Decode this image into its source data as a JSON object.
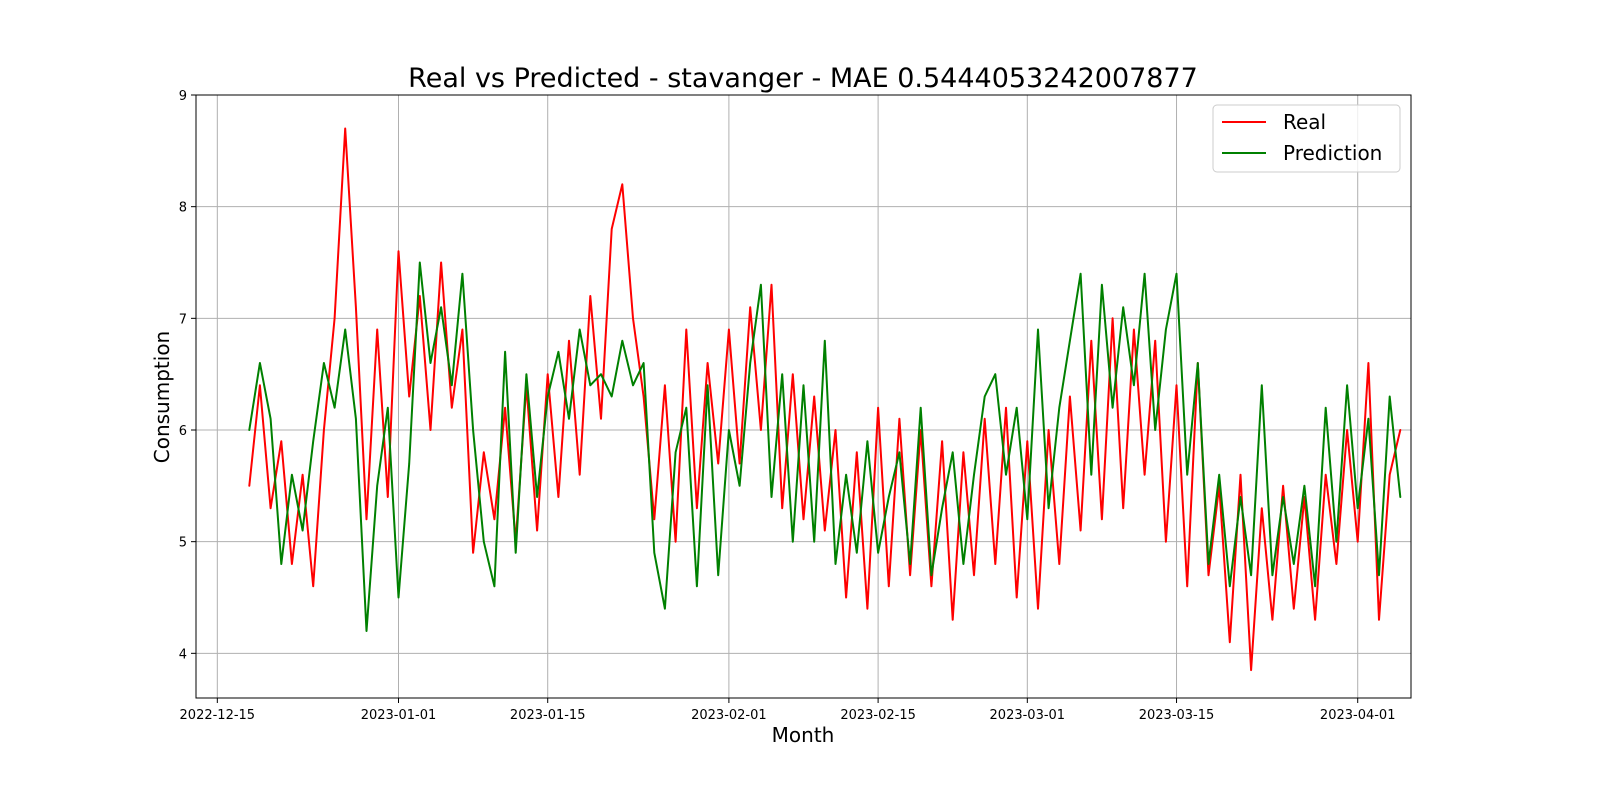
{
  "chart_data": {
    "type": "line",
    "title": "Real vs Predicted - stavanger - MAE 0.5444053242007877",
    "xlabel": "Month",
    "ylabel": "Consumption",
    "x_range": [
      "2022-12-13",
      "2023-04-06"
    ],
    "ylim": [
      3.6,
      9.0
    ],
    "x_ticks": [
      "2022-12-15",
      "2023-01-01",
      "2023-01-15",
      "2023-02-01",
      "2023-02-15",
      "2023-03-01",
      "2023-03-15",
      "2023-04-01"
    ],
    "y_ticks": [
      4,
      5,
      6,
      7,
      8,
      9
    ],
    "grid": true,
    "legend_position": "top-right",
    "series": [
      {
        "name": "Real",
        "color": "#ff0000",
        "points": [
          [
            "2022-12-18",
            5.5
          ],
          [
            "2022-12-19",
            6.4
          ],
          [
            "2022-12-20",
            5.3
          ],
          [
            "2022-12-21",
            5.9
          ],
          [
            "2022-12-22",
            4.8
          ],
          [
            "2022-12-23",
            5.6
          ],
          [
            "2022-12-24",
            4.6
          ],
          [
            "2022-12-25",
            6.0
          ],
          [
            "2022-12-26",
            7.0
          ],
          [
            "2022-12-27",
            8.7
          ],
          [
            "2022-12-28",
            7.1
          ],
          [
            "2022-12-29",
            5.2
          ],
          [
            "2022-12-30",
            6.9
          ],
          [
            "2022-12-31",
            5.4
          ],
          [
            "2023-01-01",
            7.6
          ],
          [
            "2023-01-02",
            6.3
          ],
          [
            "2023-01-03",
            7.2
          ],
          [
            "2023-01-04",
            6.0
          ],
          [
            "2023-01-05",
            7.5
          ],
          [
            "2023-01-06",
            6.2
          ],
          [
            "2023-01-07",
            6.9
          ],
          [
            "2023-01-08",
            4.9
          ],
          [
            "2023-01-09",
            5.8
          ],
          [
            "2023-01-10",
            5.2
          ],
          [
            "2023-01-11",
            6.2
          ],
          [
            "2023-01-12",
            5.0
          ],
          [
            "2023-01-13",
            6.4
          ],
          [
            "2023-01-14",
            5.1
          ],
          [
            "2023-01-15",
            6.5
          ],
          [
            "2023-01-16",
            5.4
          ],
          [
            "2023-01-17",
            6.8
          ],
          [
            "2023-01-18",
            5.6
          ],
          [
            "2023-01-19",
            7.2
          ],
          [
            "2023-01-20",
            6.1
          ],
          [
            "2023-01-21",
            7.8
          ],
          [
            "2023-01-22",
            8.2
          ],
          [
            "2023-01-23",
            7.0
          ],
          [
            "2023-01-24",
            6.3
          ],
          [
            "2023-01-25",
            5.2
          ],
          [
            "2023-01-26",
            6.4
          ],
          [
            "2023-01-27",
            5.0
          ],
          [
            "2023-01-28",
            6.9
          ],
          [
            "2023-01-29",
            5.3
          ],
          [
            "2023-01-30",
            6.6
          ],
          [
            "2023-01-31",
            5.7
          ],
          [
            "2023-02-01",
            6.9
          ],
          [
            "2023-02-02",
            5.7
          ],
          [
            "2023-02-03",
            7.1
          ],
          [
            "2023-02-04",
            6.0
          ],
          [
            "2023-02-05",
            7.3
          ],
          [
            "2023-02-06",
            5.3
          ],
          [
            "2023-02-07",
            6.5
          ],
          [
            "2023-02-08",
            5.2
          ],
          [
            "2023-02-09",
            6.3
          ],
          [
            "2023-02-10",
            5.1
          ],
          [
            "2023-02-11",
            6.0
          ],
          [
            "2023-02-12",
            4.5
          ],
          [
            "2023-02-13",
            5.8
          ],
          [
            "2023-02-14",
            4.4
          ],
          [
            "2023-02-15",
            6.2
          ],
          [
            "2023-02-16",
            4.6
          ],
          [
            "2023-02-17",
            6.1
          ],
          [
            "2023-02-18",
            4.7
          ],
          [
            "2023-02-19",
            6.0
          ],
          [
            "2023-02-20",
            4.6
          ],
          [
            "2023-02-21",
            5.9
          ],
          [
            "2023-02-22",
            4.3
          ],
          [
            "2023-02-23",
            5.8
          ],
          [
            "2023-02-24",
            4.7
          ],
          [
            "2023-02-25",
            6.1
          ],
          [
            "2023-02-26",
            4.8
          ],
          [
            "2023-02-27",
            6.2
          ],
          [
            "2023-02-28",
            4.5
          ],
          [
            "2023-03-01",
            5.9
          ],
          [
            "2023-03-02",
            4.4
          ],
          [
            "2023-03-03",
            6.0
          ],
          [
            "2023-03-04",
            4.8
          ],
          [
            "2023-03-05",
            6.3
          ],
          [
            "2023-03-06",
            5.1
          ],
          [
            "2023-03-07",
            6.8
          ],
          [
            "2023-03-08",
            5.2
          ],
          [
            "2023-03-09",
            7.0
          ],
          [
            "2023-03-10",
            5.3
          ],
          [
            "2023-03-11",
            6.9
          ],
          [
            "2023-03-12",
            5.6
          ],
          [
            "2023-03-13",
            6.8
          ],
          [
            "2023-03-14",
            5.0
          ],
          [
            "2023-03-15",
            6.4
          ],
          [
            "2023-03-16",
            4.6
          ],
          [
            "2023-03-17",
            6.6
          ],
          [
            "2023-03-18",
            4.7
          ],
          [
            "2023-03-19",
            5.5
          ],
          [
            "2023-03-20",
            4.1
          ],
          [
            "2023-03-21",
            5.6
          ],
          [
            "2023-03-22",
            3.85
          ],
          [
            "2023-03-23",
            5.3
          ],
          [
            "2023-03-24",
            4.3
          ],
          [
            "2023-03-25",
            5.5
          ],
          [
            "2023-03-26",
            4.4
          ],
          [
            "2023-03-27",
            5.4
          ],
          [
            "2023-03-28",
            4.3
          ],
          [
            "2023-03-29",
            5.6
          ],
          [
            "2023-03-30",
            4.8
          ],
          [
            "2023-03-31",
            6.0
          ],
          [
            "2023-04-01",
            5.0
          ],
          [
            "2023-04-02",
            6.6
          ],
          [
            "2023-04-03",
            4.3
          ],
          [
            "2023-04-04",
            5.6
          ],
          [
            "2023-04-05",
            6.0
          ]
        ]
      },
      {
        "name": "Prediction",
        "color": "#008000",
        "points": [
          [
            "2022-12-18",
            6.0
          ],
          [
            "2022-12-19",
            6.6
          ],
          [
            "2022-12-20",
            6.1
          ],
          [
            "2022-12-21",
            4.8
          ],
          [
            "2022-12-22",
            5.6
          ],
          [
            "2022-12-23",
            5.1
          ],
          [
            "2022-12-24",
            5.9
          ],
          [
            "2022-12-25",
            6.6
          ],
          [
            "2022-12-26",
            6.2
          ],
          [
            "2022-12-27",
            6.9
          ],
          [
            "2022-12-28",
            6.1
          ],
          [
            "2022-12-29",
            4.2
          ],
          [
            "2022-12-30",
            5.5
          ],
          [
            "2022-12-31",
            6.2
          ],
          [
            "2023-01-01",
            4.5
          ],
          [
            "2023-01-02",
            5.7
          ],
          [
            "2023-01-03",
            7.5
          ],
          [
            "2023-01-04",
            6.6
          ],
          [
            "2023-01-05",
            7.1
          ],
          [
            "2023-01-06",
            6.4
          ],
          [
            "2023-01-07",
            7.4
          ],
          [
            "2023-01-08",
            6.0
          ],
          [
            "2023-01-09",
            5.0
          ],
          [
            "2023-01-10",
            4.6
          ],
          [
            "2023-01-11",
            6.7
          ],
          [
            "2023-01-12",
            4.9
          ],
          [
            "2023-01-13",
            6.5
          ],
          [
            "2023-01-14",
            5.4
          ],
          [
            "2023-01-15",
            6.3
          ],
          [
            "2023-01-16",
            6.7
          ],
          [
            "2023-01-17",
            6.1
          ],
          [
            "2023-01-18",
            6.9
          ],
          [
            "2023-01-19",
            6.4
          ],
          [
            "2023-01-20",
            6.5
          ],
          [
            "2023-01-21",
            6.3
          ],
          [
            "2023-01-22",
            6.8
          ],
          [
            "2023-01-23",
            6.4
          ],
          [
            "2023-01-24",
            6.6
          ],
          [
            "2023-01-25",
            4.9
          ],
          [
            "2023-01-26",
            4.4
          ],
          [
            "2023-01-27",
            5.8
          ],
          [
            "2023-01-28",
            6.2
          ],
          [
            "2023-01-29",
            4.6
          ],
          [
            "2023-01-30",
            6.4
          ],
          [
            "2023-01-31",
            4.7
          ],
          [
            "2023-02-01",
            6.0
          ],
          [
            "2023-02-02",
            5.5
          ],
          [
            "2023-02-03",
            6.6
          ],
          [
            "2023-02-04",
            7.3
          ],
          [
            "2023-02-05",
            5.4
          ],
          [
            "2023-02-06",
            6.5
          ],
          [
            "2023-02-07",
            5.0
          ],
          [
            "2023-02-08",
            6.4
          ],
          [
            "2023-02-09",
            5.0
          ],
          [
            "2023-02-10",
            6.8
          ],
          [
            "2023-02-11",
            4.8
          ],
          [
            "2023-02-12",
            5.6
          ],
          [
            "2023-02-13",
            4.9
          ],
          [
            "2023-02-14",
            5.9
          ],
          [
            "2023-02-15",
            4.9
          ],
          [
            "2023-02-16",
            5.4
          ],
          [
            "2023-02-17",
            5.8
          ],
          [
            "2023-02-18",
            4.8
          ],
          [
            "2023-02-19",
            6.2
          ],
          [
            "2023-02-20",
            4.7
          ],
          [
            "2023-02-21",
            5.3
          ],
          [
            "2023-02-22",
            5.8
          ],
          [
            "2023-02-23",
            4.8
          ],
          [
            "2023-02-24",
            5.6
          ],
          [
            "2023-02-25",
            6.3
          ],
          [
            "2023-02-26",
            6.5
          ],
          [
            "2023-02-27",
            5.6
          ],
          [
            "2023-02-28",
            6.2
          ],
          [
            "2023-03-01",
            5.2
          ],
          [
            "2023-03-02",
            6.9
          ],
          [
            "2023-03-03",
            5.3
          ],
          [
            "2023-03-04",
            6.2
          ],
          [
            "2023-03-05",
            6.8
          ],
          [
            "2023-03-06",
            7.4
          ],
          [
            "2023-03-07",
            5.6
          ],
          [
            "2023-03-08",
            7.3
          ],
          [
            "2023-03-09",
            6.2
          ],
          [
            "2023-03-10",
            7.1
          ],
          [
            "2023-03-11",
            6.4
          ],
          [
            "2023-03-12",
            7.4
          ],
          [
            "2023-03-13",
            6.0
          ],
          [
            "2023-03-14",
            6.9
          ],
          [
            "2023-03-15",
            7.4
          ],
          [
            "2023-03-16",
            5.6
          ],
          [
            "2023-03-17",
            6.6
          ],
          [
            "2023-03-18",
            4.8
          ],
          [
            "2023-03-19",
            5.6
          ],
          [
            "2023-03-20",
            4.6
          ],
          [
            "2023-03-21",
            5.4
          ],
          [
            "2023-03-22",
            4.7
          ],
          [
            "2023-03-23",
            6.4
          ],
          [
            "2023-03-24",
            4.7
          ],
          [
            "2023-03-25",
            5.4
          ],
          [
            "2023-03-26",
            4.8
          ],
          [
            "2023-03-27",
            5.5
          ],
          [
            "2023-03-28",
            4.6
          ],
          [
            "2023-03-29",
            6.2
          ],
          [
            "2023-03-30",
            5.0
          ],
          [
            "2023-03-31",
            6.4
          ],
          [
            "2023-04-01",
            5.3
          ],
          [
            "2023-04-02",
            6.1
          ],
          [
            "2023-04-03",
            4.7
          ],
          [
            "2023-04-04",
            6.3
          ],
          [
            "2023-04-05",
            5.4
          ]
        ]
      }
    ]
  }
}
